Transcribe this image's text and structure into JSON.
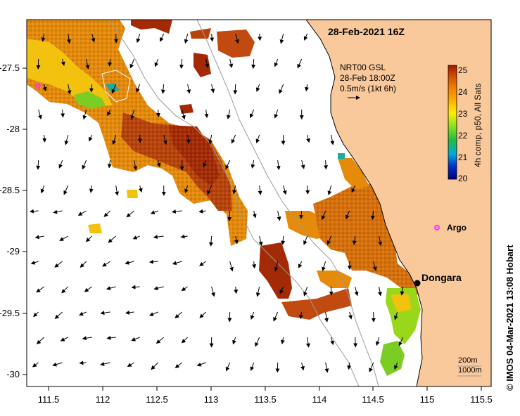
{
  "map": {
    "title": "28-Feb-2021 16Z",
    "product_lines": [
      "NRT00 GSL",
      "28-Feb 18:00Z",
      "0.5m/s (1kt 6h)"
    ],
    "colorbar": {
      "label": "4h comp, p50, All Sats",
      "ticks": [
        "25",
        "24",
        "23",
        "22",
        "21",
        "20"
      ],
      "range": [
        20,
        25
      ]
    },
    "x_ticks": [
      "111.5",
      "112",
      "112.5",
      "113",
      "113.5",
      "114",
      "114.5",
      "115",
      "115.5"
    ],
    "y_ticks": [
      "-27.5",
      "-28",
      "-28.5",
      "-29",
      "-29.5",
      "-30"
    ],
    "places": {
      "town": "Dongara",
      "float": "Argo"
    },
    "scale_lines": [
      "200m",
      "1000m"
    ],
    "credit": "© IMOS 04-Mar-2021 13:08 Hobart",
    "colors": {
      "land": "#f9c89b",
      "argo": "#ff33ff",
      "coast": "#000000",
      "isobath": "#9a9a9a"
    }
  }
}
